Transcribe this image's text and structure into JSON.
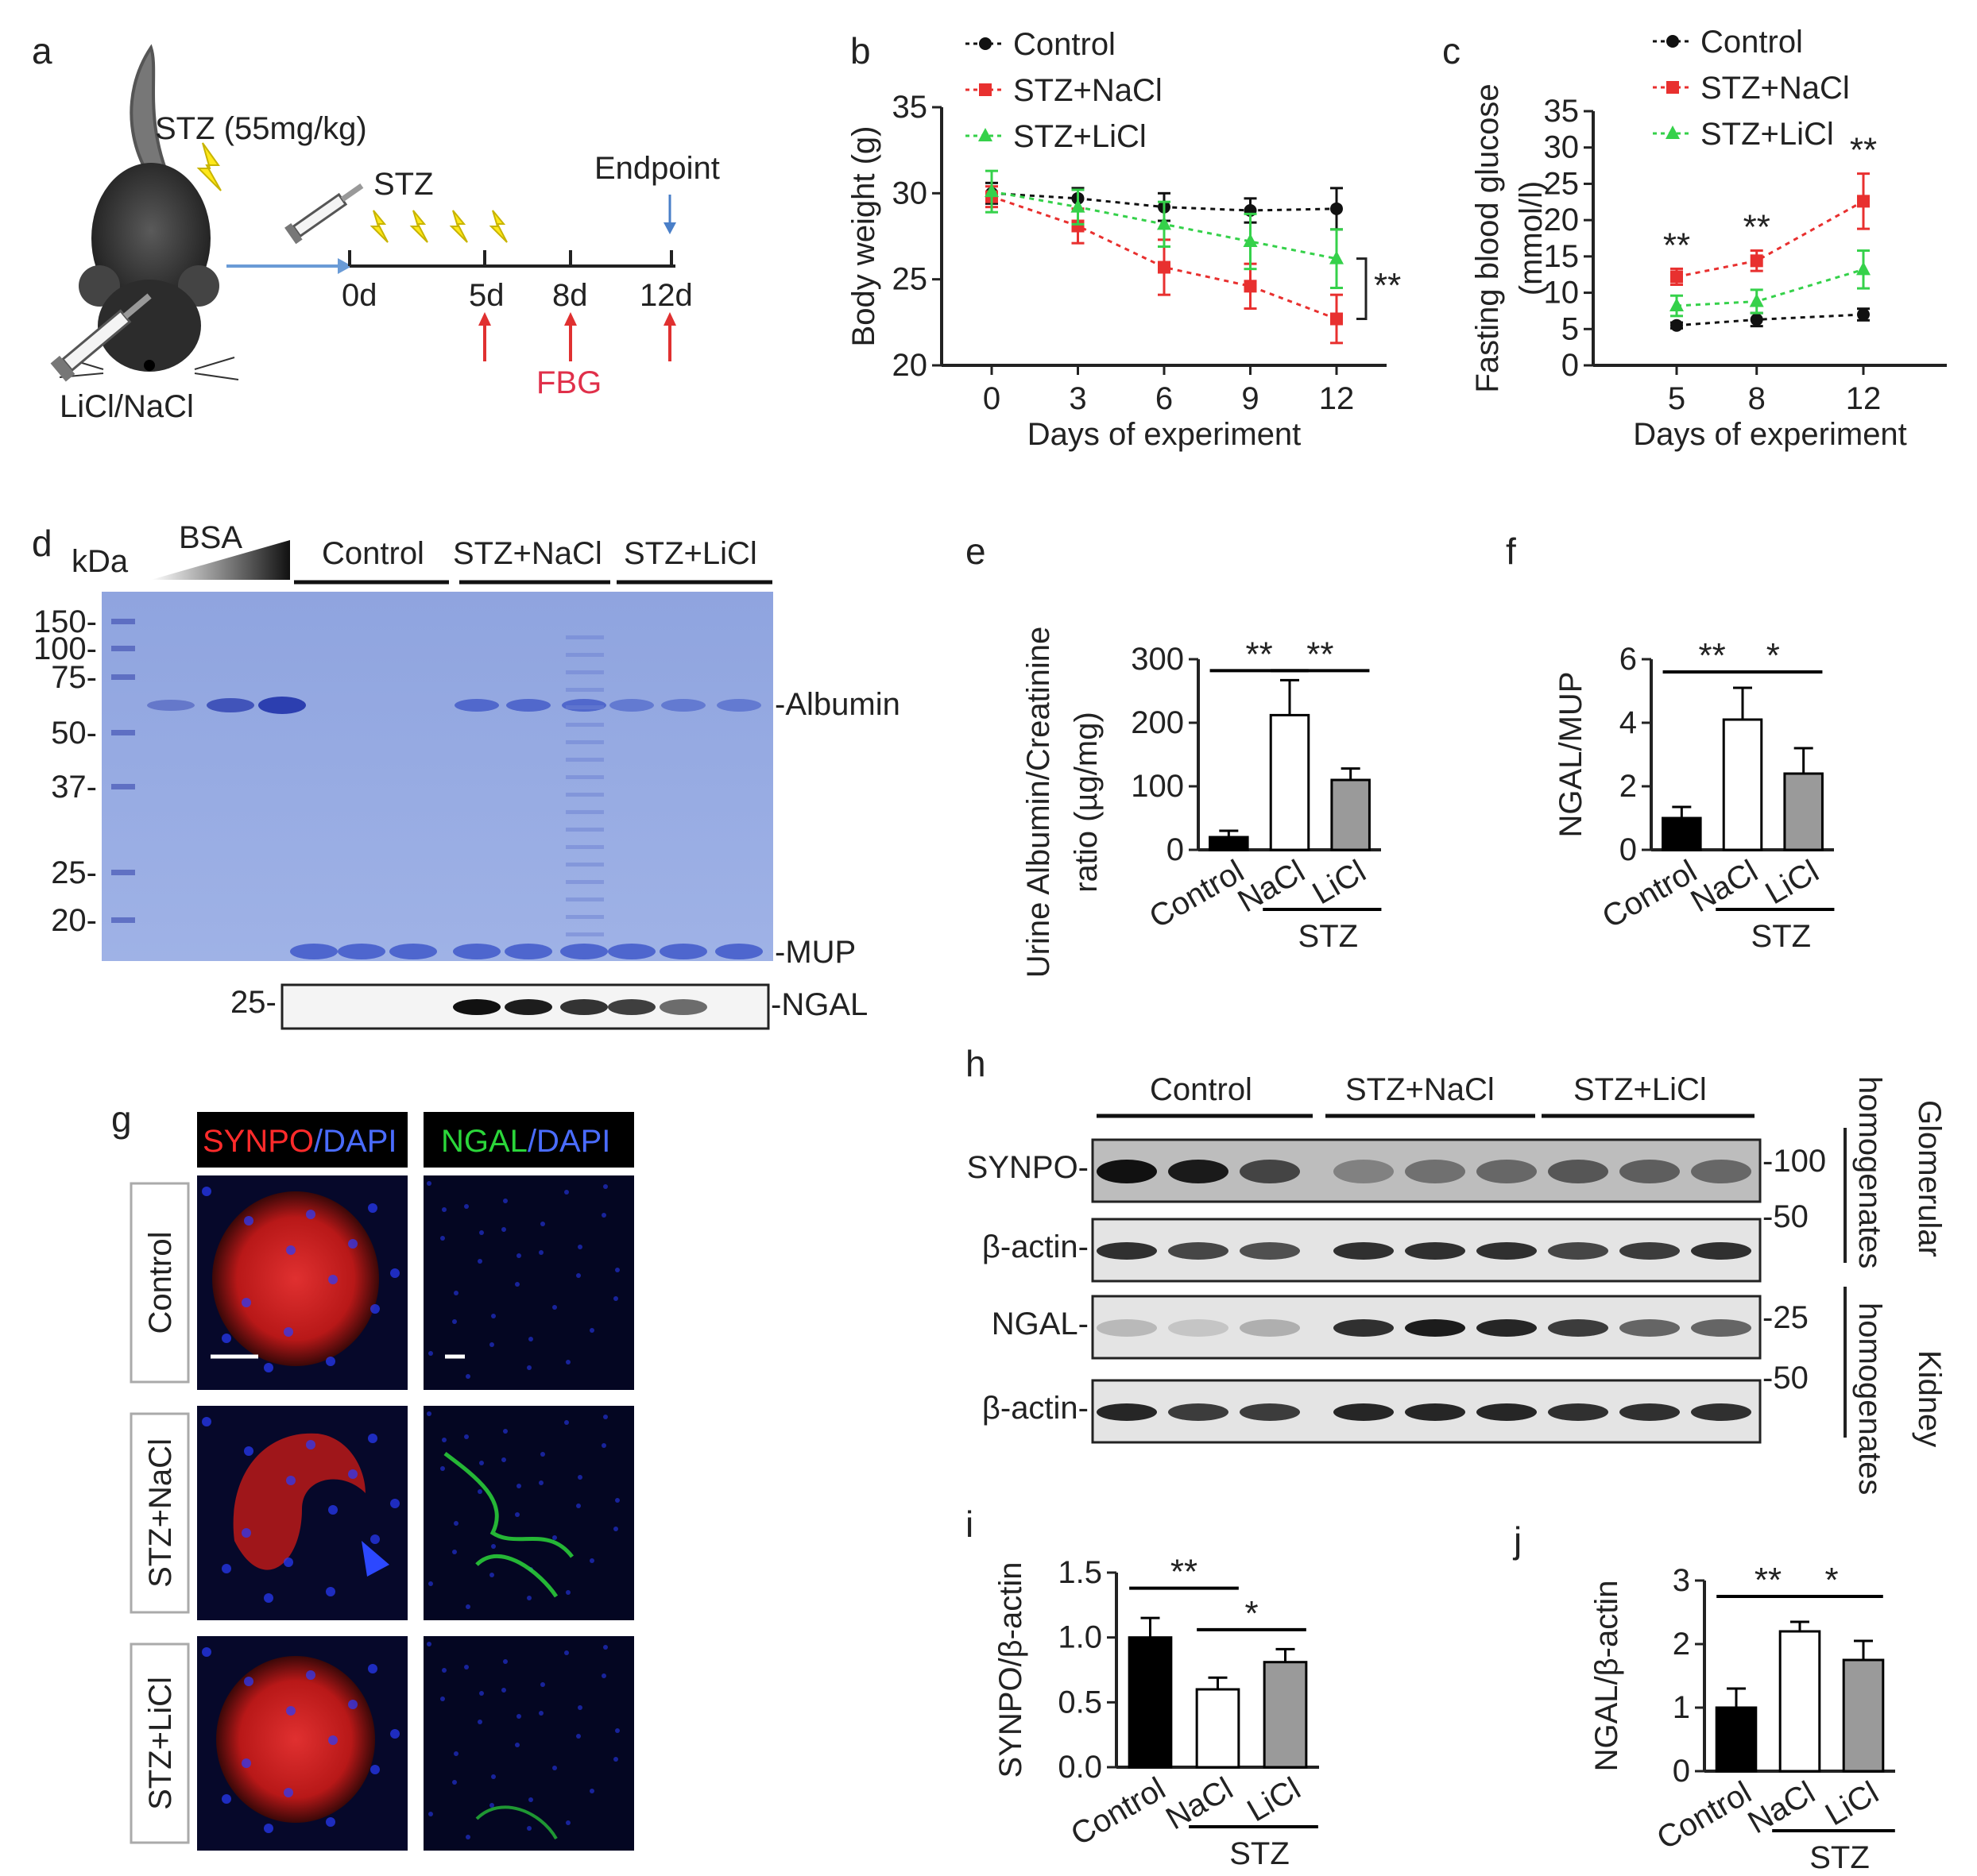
{
  "panel_labels": {
    "a": "a",
    "b": "b",
    "c": "c",
    "d": "d",
    "e": "e",
    "f": "f",
    "g": "g",
    "h": "h",
    "i": "i",
    "j": "j"
  },
  "schematic": {
    "stz_dose": "STZ (55mg/kg)",
    "stz": "STZ",
    "endpoint": "Endpoint",
    "treatment": "LiCl/NaCl",
    "days": [
      "0d",
      "5d",
      "8d",
      "12d"
    ],
    "fbg": "FBG"
  },
  "legend": [
    "Control",
    "STZ+NaCl",
    "STZ+LiCl"
  ],
  "stz_group": "STZ",
  "chart_data": [
    {
      "panel": "b",
      "type": "line",
      "xlabel": "Days of experiment",
      "ylabel": "Body weight (g)",
      "x": [
        0,
        3,
        6,
        9,
        12
      ],
      "ylim": [
        20,
        35
      ],
      "yticks": [
        20,
        25,
        30,
        35
      ],
      "series": [
        {
          "name": "Control",
          "color": "#111111",
          "values": [
            30.0,
            29.7,
            29.2,
            29.0,
            29.1
          ],
          "err": [
            0.6,
            0.6,
            0.8,
            0.7,
            1.2
          ]
        },
        {
          "name": "STZ+NaCl",
          "color": "#e8302f",
          "values": [
            29.8,
            28.1,
            25.7,
            24.6,
            22.7
          ],
          "err": [
            0.6,
            1.0,
            1.6,
            1.3,
            1.4
          ]
        },
        {
          "name": "STZ+LiCl",
          "color": "#35d14a",
          "values": [
            30.1,
            29.2,
            28.2,
            27.2,
            26.2
          ],
          "err": [
            1.2,
            1.0,
            1.3,
            1.6,
            1.7
          ]
        }
      ],
      "annotations": [
        "**"
      ]
    },
    {
      "panel": "c",
      "type": "line",
      "xlabel": "Days of experiment",
      "ylabel": "Fasting blood glucose",
      "ylabel2": "(mmol/l)",
      "x": [
        5,
        8,
        12
      ],
      "ylim": [
        0,
        35
      ],
      "yticks": [
        0,
        5,
        10,
        15,
        20,
        25,
        30,
        35
      ],
      "series": [
        {
          "name": "Control",
          "color": "#111111",
          "values": [
            5.5,
            6.3,
            7.0
          ],
          "err": [
            0.4,
            0.9,
            0.8
          ]
        },
        {
          "name": "STZ+NaCl",
          "color": "#e8302f",
          "values": [
            12.2,
            14.4,
            22.6
          ],
          "err": [
            1.1,
            1.4,
            3.8
          ]
        },
        {
          "name": "STZ+LiCl",
          "color": "#35d14a",
          "values": [
            8.2,
            8.8,
            13.2
          ],
          "err": [
            1.4,
            1.6,
            2.6
          ]
        }
      ],
      "annotations": [
        "**",
        "**",
        "**"
      ]
    },
    {
      "panel": "e",
      "type": "bar",
      "categories": [
        "Control",
        "NaCl",
        "LiCl"
      ],
      "values": [
        20,
        212,
        110
      ],
      "err": [
        10,
        55,
        18
      ],
      "ylabel": "Urine Albumin/Creatinine",
      "ylabel2": "ratio (µg/mg)",
      "ylim": [
        0,
        300
      ],
      "yticks": [
        0,
        100,
        200,
        300
      ],
      "annotations": [
        "**",
        "**"
      ]
    },
    {
      "panel": "f",
      "type": "bar",
      "categories": [
        "Control",
        "NaCl",
        "LiCl"
      ],
      "values": [
        1.0,
        4.1,
        2.4
      ],
      "err": [
        0.35,
        1.0,
        0.8
      ],
      "ylabel": "NGAL/MUP",
      "ylim": [
        0,
        6
      ],
      "yticks": [
        0,
        2,
        4,
        6
      ],
      "annotations": [
        "**",
        "*"
      ]
    },
    {
      "panel": "i",
      "type": "bar",
      "categories": [
        "Control",
        "NaCl",
        "LiCl"
      ],
      "values": [
        1.0,
        0.6,
        0.81
      ],
      "err": [
        0.15,
        0.09,
        0.1
      ],
      "ylabel": "SYNPO/β-actin",
      "ylim": [
        0,
        1.5
      ],
      "yticks": [
        0.0,
        0.5,
        1.0,
        1.5
      ],
      "annotations": [
        "**",
        "*"
      ]
    },
    {
      "panel": "j",
      "type": "bar",
      "categories": [
        "Control",
        "NaCl",
        "LiCl"
      ],
      "values": [
        1.0,
        2.2,
        1.75
      ],
      "err": [
        0.3,
        0.15,
        0.3
      ],
      "ylabel": "NGAL/β-actin",
      "ylim": [
        0,
        3
      ],
      "yticks": [
        0,
        1,
        2,
        3
      ],
      "annotations": [
        "**",
        "*"
      ]
    }
  ],
  "gel": {
    "kda": "kDa",
    "bsa": "BSA",
    "groups": [
      "Control",
      "STZ+NaCl",
      "STZ+LiCl"
    ],
    "markers": [
      "150-",
      "100-",
      "75-",
      "50-",
      "37-",
      "25-",
      "20-"
    ],
    "right_labels": [
      "-Albumin",
      "-MUP"
    ],
    "ngal_marker": "25-",
    "ngal_label": "-NGAL"
  },
  "ihc": {
    "col1": [
      "SYNPO",
      "/DAPI"
    ],
    "col2": [
      "NGAL",
      "/DAPI"
    ],
    "rows": [
      "Control",
      "STZ+NaCl",
      "STZ+LiCl"
    ]
  },
  "western": {
    "groups": [
      "Control",
      "STZ+NaCl",
      "STZ+LiCl"
    ],
    "rows": [
      "SYNPO-",
      "β-actin-",
      "NGAL-",
      "β-actin-"
    ],
    "markers": [
      "-100",
      "-50",
      "-25",
      "-50"
    ],
    "side": [
      "Glomerular",
      "homogenates",
      "Kidney",
      "homogenates"
    ]
  }
}
